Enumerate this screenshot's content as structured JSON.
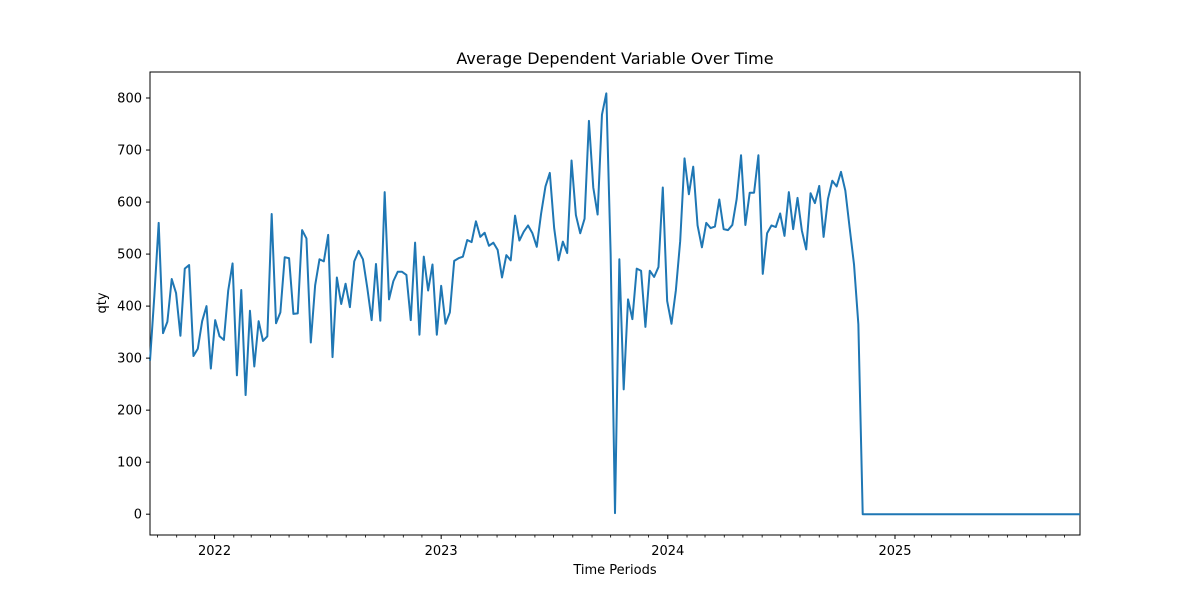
{
  "chart_data": {
    "type": "line",
    "title": "Average Dependent Variable Over Time",
    "xlabel": "Time Periods",
    "ylabel": "qty",
    "x_range": [
      "2021-09-19",
      "2025-10-26"
    ],
    "ylim": [
      -40,
      850
    ],
    "x_major_ticks": [
      "2022-01-01",
      "2023-01-01",
      "2024-01-01",
      "2025-01-01"
    ],
    "x_major_tick_labels": [
      "2022",
      "2023",
      "2024",
      "2025"
    ],
    "x_minor_ticks": [
      "2021-10-01",
      "2021-11-01",
      "2021-12-01",
      "2022-02-01",
      "2022-03-01",
      "2022-04-01",
      "2022-05-01",
      "2022-06-01",
      "2022-07-01",
      "2022-08-01",
      "2022-09-01",
      "2022-10-01",
      "2022-11-01",
      "2022-12-01",
      "2023-02-01",
      "2023-03-01",
      "2023-04-01",
      "2023-05-01",
      "2023-06-01",
      "2023-07-01",
      "2023-08-01",
      "2023-09-01",
      "2023-10-01",
      "2023-11-01",
      "2023-12-01",
      "2024-02-01",
      "2024-03-01",
      "2024-04-01",
      "2024-05-01",
      "2024-06-01",
      "2024-07-01",
      "2024-08-01",
      "2024-09-01",
      "2024-10-01",
      "2024-11-01",
      "2024-12-01",
      "2025-02-01",
      "2025-03-01",
      "2025-04-01",
      "2025-05-01",
      "2025-06-01",
      "2025-07-01",
      "2025-08-01",
      "2025-09-01",
      "2025-10-01"
    ],
    "y_ticks": [
      0,
      100,
      200,
      300,
      400,
      500,
      600,
      700,
      800
    ],
    "grid": false,
    "legend": "none",
    "series": [
      {
        "color": "#1f77b4",
        "start_date": "2021-09-19",
        "interval_days": 7,
        "values": [
          295,
          420,
          560,
          348,
          370,
          452,
          425,
          343,
          472,
          479,
          304,
          318,
          371,
          400,
          280,
          373,
          342,
          335,
          430,
          482,
          267,
          431,
          229,
          391,
          284,
          371,
          333,
          342,
          577,
          367,
          388,
          494,
          492,
          385,
          386,
          546,
          530,
          330,
          440,
          490,
          486,
          537,
          302,
          455,
          404,
          443,
          398,
          486,
          506,
          490,
          435,
          373,
          481,
          372,
          619,
          413,
          448,
          466,
          466,
          460,
          373,
          522,
          345,
          495,
          430,
          480,
          345,
          439,
          366,
          388,
          487,
          492,
          495,
          527,
          523,
          563,
          533,
          541,
          516,
          522,
          508,
          455,
          498,
          488,
          574,
          526,
          543,
          555,
          540,
          514,
          578,
          630,
          656,
          550,
          488,
          524,
          502,
          680,
          575,
          540,
          568,
          756,
          628,
          576,
          768,
          809,
          500,
          2,
          490,
          240,
          413,
          375,
          472,
          468,
          360,
          468,
          456,
          475,
          628,
          410,
          366,
          430,
          525,
          684,
          615,
          668,
          555,
          513,
          560,
          550,
          553,
          605,
          548,
          546,
          556,
          606,
          690,
          556,
          618,
          618,
          690,
          462,
          540,
          555,
          552,
          578,
          535,
          619,
          548,
          608,
          545,
          509,
          617,
          598,
          631,
          533,
          606,
          641,
          630,
          658,
          622,
          550,
          480,
          365,
          0,
          0,
          0,
          0,
          0,
          0,
          0,
          0,
          0,
          0,
          0,
          0,
          0,
          0,
          0,
          0,
          0,
          0,
          0,
          0,
          0,
          0,
          0,
          0,
          0,
          0,
          0,
          0,
          0,
          0,
          0,
          0,
          0,
          0,
          0,
          0,
          0,
          0,
          0,
          0,
          0,
          0,
          0,
          0,
          0,
          0,
          0,
          0,
          0,
          0,
          0,
          0,
          0,
          0
        ]
      }
    ]
  }
}
